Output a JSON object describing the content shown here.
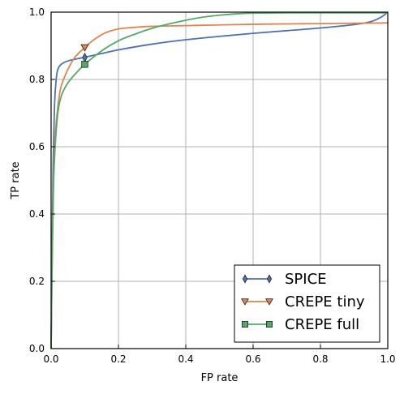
{
  "chart_data": {
    "type": "line",
    "xlabel": "FP rate",
    "ylabel": "TP rate",
    "xlim": [
      0.0,
      1.0
    ],
    "ylim": [
      0.0,
      1.0
    ],
    "xticks": [
      "0.0",
      "0.2",
      "0.4",
      "0.6",
      "0.8",
      "1.0"
    ],
    "yticks": [
      "0.0",
      "0.2",
      "0.4",
      "0.6",
      "0.8",
      "1.0"
    ],
    "grid": true,
    "legend_position": "bottom-right",
    "series": [
      {
        "name": "SPICE",
        "color": "#4c72b0",
        "marker": "diamond",
        "marker_point": [
          0.1,
          0.865
        ],
        "points": [
          [
            0,
            0
          ],
          [
            0.003,
            0.3
          ],
          [
            0.006,
            0.55
          ],
          [
            0.01,
            0.72
          ],
          [
            0.015,
            0.8
          ],
          [
            0.02,
            0.83
          ],
          [
            0.03,
            0.845
          ],
          [
            0.05,
            0.855
          ],
          [
            0.08,
            0.862
          ],
          [
            0.1,
            0.866
          ],
          [
            0.15,
            0.877
          ],
          [
            0.2,
            0.888
          ],
          [
            0.3,
            0.905
          ],
          [
            0.4,
            0.918
          ],
          [
            0.5,
            0.928
          ],
          [
            0.6,
            0.937
          ],
          [
            0.7,
            0.945
          ],
          [
            0.8,
            0.953
          ],
          [
            0.9,
            0.963
          ],
          [
            0.95,
            0.972
          ],
          [
            0.98,
            0.985
          ],
          [
            1.0,
            1.0
          ]
        ]
      },
      {
        "name": "CREPE tiny",
        "color": "#dd8452",
        "marker": "triangle-down",
        "marker_point": [
          0.1,
          0.895
        ],
        "points": [
          [
            0,
            0
          ],
          [
            0.003,
            0.25
          ],
          [
            0.007,
            0.5
          ],
          [
            0.012,
            0.63
          ],
          [
            0.02,
            0.72
          ],
          [
            0.03,
            0.78
          ],
          [
            0.05,
            0.83
          ],
          [
            0.07,
            0.865
          ],
          [
            0.1,
            0.895
          ],
          [
            0.13,
            0.92
          ],
          [
            0.16,
            0.938
          ],
          [
            0.2,
            0.95
          ],
          [
            0.25,
            0.955
          ],
          [
            0.3,
            0.958
          ],
          [
            0.4,
            0.96
          ],
          [
            0.5,
            0.962
          ],
          [
            0.6,
            0.964
          ],
          [
            0.7,
            0.965
          ],
          [
            0.8,
            0.966
          ],
          [
            0.9,
            0.967
          ],
          [
            1.0,
            0.968
          ]
        ]
      },
      {
        "name": "CREPE full",
        "color": "#55a868",
        "marker": "square",
        "marker_point": [
          0.1,
          0.845
        ],
        "points": [
          [
            0,
            0
          ],
          [
            0.003,
            0.25
          ],
          [
            0.007,
            0.48
          ],
          [
            0.012,
            0.6
          ],
          [
            0.02,
            0.7
          ],
          [
            0.03,
            0.75
          ],
          [
            0.05,
            0.79
          ],
          [
            0.08,
            0.825
          ],
          [
            0.1,
            0.845
          ],
          [
            0.15,
            0.885
          ],
          [
            0.2,
            0.915
          ],
          [
            0.25,
            0.935
          ],
          [
            0.3,
            0.952
          ],
          [
            0.35,
            0.965
          ],
          [
            0.4,
            0.976
          ],
          [
            0.45,
            0.985
          ],
          [
            0.5,
            0.991
          ],
          [
            0.55,
            0.995
          ],
          [
            0.6,
            0.997
          ],
          [
            0.7,
            0.998
          ],
          [
            0.8,
            0.998
          ],
          [
            0.9,
            0.998
          ],
          [
            1.0,
            0.998
          ]
        ]
      }
    ]
  }
}
